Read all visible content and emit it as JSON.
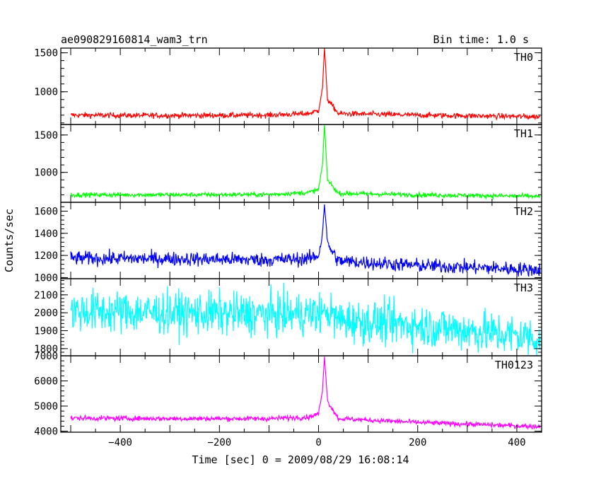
{
  "header": {
    "title": "ae090829160814_wam3_trn",
    "bin_time": "Bin time: 1.0 s"
  },
  "chart_data": {
    "type": "line",
    "xlabel": "Time [sec] 0 = 2009/08/29 16:08:14",
    "ylabel": "Counts/sec",
    "xlim": [
      -520,
      450
    ],
    "x_ticks": [
      -400,
      -200,
      0,
      200,
      400
    ],
    "x_range": [
      -500,
      447
    ],
    "peak_time": 12,
    "panels": [
      {
        "name": "TH0",
        "color": "#ff0000",
        "ylim": [
          580,
          1560
        ],
        "y_ticks": [
          1000,
          1500
        ],
        "values": [
          {
            "x": -500,
            "y": 700
          },
          {
            "x": -300,
            "y": 695
          },
          {
            "x": -100,
            "y": 700
          },
          {
            "x": -20,
            "y": 720
          },
          {
            "x": 0,
            "y": 760
          },
          {
            "x": 8,
            "y": 1050
          },
          {
            "x": 12,
            "y": 1560
          },
          {
            "x": 18,
            "y": 900
          },
          {
            "x": 40,
            "y": 720
          },
          {
            "x": 200,
            "y": 700
          },
          {
            "x": 447,
            "y": 680
          }
        ],
        "noise": 25
      },
      {
        "name": "TH1",
        "color": "#00ff00",
        "ylim": [
          600,
          1640
        ],
        "y_ticks": [
          1000,
          1500
        ],
        "values": [
          {
            "x": -500,
            "y": 700
          },
          {
            "x": -300,
            "y": 700
          },
          {
            "x": -100,
            "y": 705
          },
          {
            "x": -20,
            "y": 730
          },
          {
            "x": 0,
            "y": 770
          },
          {
            "x": 8,
            "y": 1100
          },
          {
            "x": 12,
            "y": 1630
          },
          {
            "x": 18,
            "y": 900
          },
          {
            "x": 40,
            "y": 720
          },
          {
            "x": 200,
            "y": 700
          },
          {
            "x": 447,
            "y": 680
          }
        ],
        "noise": 22
      },
      {
        "name": "TH2",
        "color": "#0000ff",
        "ylim": [
          990,
          1680
        ],
        "y_ticks": [
          1000,
          1200,
          1400,
          1600
        ],
        "values": [
          {
            "x": -500,
            "y": 1175
          },
          {
            "x": -300,
            "y": 1170
          },
          {
            "x": -100,
            "y": 1160
          },
          {
            "x": -20,
            "y": 1170
          },
          {
            "x": 0,
            "y": 1200
          },
          {
            "x": 8,
            "y": 1400
          },
          {
            "x": 12,
            "y": 1670
          },
          {
            "x": 18,
            "y": 1300
          },
          {
            "x": 40,
            "y": 1150
          },
          {
            "x": 200,
            "y": 1110
          },
          {
            "x": 447,
            "y": 1070
          }
        ],
        "noise": 45
      },
      {
        "name": "TH3",
        "color": "#00ffff",
        "ylim": [
          1760,
          2190
        ],
        "y_ticks": [
          1800,
          1900,
          2000,
          2100
        ],
        "values": [
          {
            "x": -500,
            "y": 2010
          },
          {
            "x": -300,
            "y": 2000
          },
          {
            "x": -100,
            "y": 1990
          },
          {
            "x": 0,
            "y": 1995
          },
          {
            "x": 12,
            "y": 2010
          },
          {
            "x": 40,
            "y": 1960
          },
          {
            "x": 200,
            "y": 1930
          },
          {
            "x": 447,
            "y": 1860
          }
        ],
        "noise": 85
      },
      {
        "name": "TH0123",
        "color": "#ff00ff",
        "ylim": [
          3960,
          7000
        ],
        "y_ticks": [
          4000,
          5000,
          6000,
          7000
        ],
        "values": [
          {
            "x": -500,
            "y": 4520
          },
          {
            "x": -300,
            "y": 4500
          },
          {
            "x": -100,
            "y": 4500
          },
          {
            "x": -20,
            "y": 4560
          },
          {
            "x": 0,
            "y": 4700
          },
          {
            "x": 8,
            "y": 5600
          },
          {
            "x": 12,
            "y": 6980
          },
          {
            "x": 18,
            "y": 5200
          },
          {
            "x": 40,
            "y": 4500
          },
          {
            "x": 200,
            "y": 4350
          },
          {
            "x": 447,
            "y": 4180
          }
        ],
        "noise": 70
      }
    ]
  }
}
